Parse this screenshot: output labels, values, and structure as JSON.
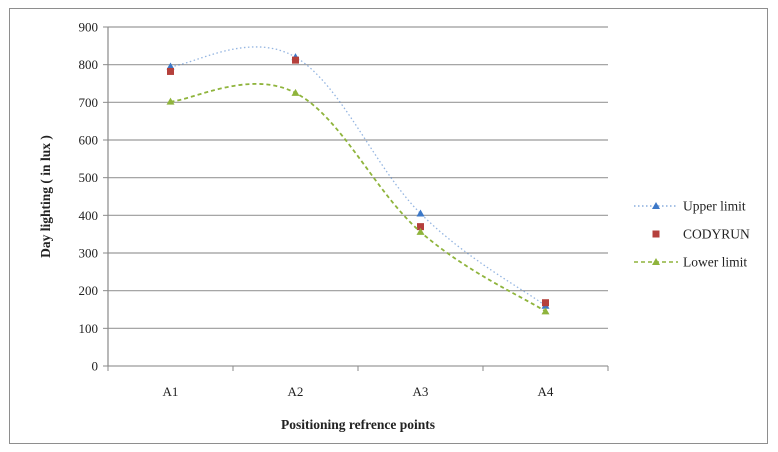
{
  "chart_data": {
    "type": "line",
    "categories": [
      "A1",
      "A2",
      "A3",
      "A4"
    ],
    "xlabel": "Positioning refrence points",
    "ylabel": "Day lighting  ( in lux )",
    "ylim": [
      0,
      900
    ],
    "yticks": [
      0,
      100,
      200,
      300,
      400,
      500,
      600,
      700,
      800,
      900
    ],
    "grid": true,
    "legend": "right",
    "series": [
      {
        "name": "Upper limit",
        "values": [
          795,
          820,
          405,
          160
        ],
        "color": "#3c78c8",
        "marker": "triangle",
        "line": "dotted"
      },
      {
        "name": "CODYRUN",
        "values": [
          782,
          812,
          370,
          168
        ],
        "color": "#b5403c",
        "marker": "square",
        "line": "none"
      },
      {
        "name": "Lower limit",
        "values": [
          702,
          725,
          356,
          145
        ],
        "color": "#8fb43c",
        "marker": "triangle",
        "line": "dashed"
      }
    ]
  }
}
